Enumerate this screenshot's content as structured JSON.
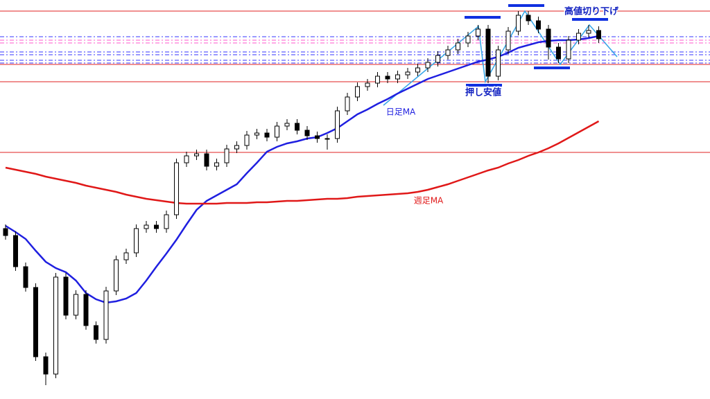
{
  "chart_data": {
    "type": "candlestick",
    "ylim": [
      0,
      576
    ],
    "up_color": "#ffffff",
    "down_color": "#000000",
    "candle_border": "#000000",
    "open": [
      246,
      236,
      191,
      161,
      61,
      36,
      176,
      121,
      151,
      106,
      86,
      156,
      201,
      211,
      246,
      251,
      246,
      266,
      341,
      351,
      354,
      336,
      341,
      361,
      366,
      381,
      384,
      378,
      394,
      398,
      388,
      380,
      376,
      376,
      416,
      436,
      451,
      456,
      466,
      462,
      468,
      472,
      478,
      486,
      496,
      504,
      514,
      524,
      534,
      466,
      504,
      531,
      554,
      546,
      534,
      508,
      491,
      518,
      528,
      532
    ],
    "high": [
      252,
      242,
      197,
      167,
      67,
      182,
      182,
      157,
      157,
      112,
      162,
      207,
      217,
      252,
      257,
      257,
      272,
      347,
      357,
      360,
      360,
      347,
      367,
      372,
      387,
      390,
      390,
      400,
      404,
      404,
      394,
      386,
      382,
      422,
      442,
      457,
      462,
      472,
      472,
      474,
      478,
      484,
      492,
      502,
      510,
      520,
      530,
      540,
      540,
      510,
      537,
      560,
      560,
      552,
      540,
      514,
      524,
      534,
      540,
      538
    ],
    "low": [
      230,
      185,
      155,
      55,
      20,
      30,
      115,
      115,
      100,
      80,
      80,
      150,
      195,
      205,
      240,
      240,
      240,
      260,
      335,
      345,
      330,
      330,
      335,
      355,
      360,
      375,
      372,
      372,
      388,
      382,
      374,
      370,
      360,
      370,
      410,
      430,
      445,
      450,
      456,
      456,
      462,
      466,
      472,
      480,
      490,
      498,
      508,
      518,
      456,
      460,
      498,
      525,
      540,
      528,
      490,
      485,
      485,
      512,
      522,
      514
    ],
    "close": [
      236,
      191,
      161,
      61,
      36,
      176,
      121,
      151,
      106,
      86,
      156,
      201,
      211,
      246,
      251,
      246,
      266,
      341,
      351,
      354,
      336,
      341,
      361,
      366,
      381,
      384,
      378,
      394,
      398,
      388,
      380,
      376,
      376,
      416,
      436,
      451,
      456,
      466,
      462,
      468,
      472,
      478,
      486,
      496,
      504,
      514,
      524,
      534,
      466,
      504,
      531,
      554,
      546,
      534,
      508,
      491,
      518,
      528,
      532,
      520
    ],
    "series": [
      {
        "name": "日足MA",
        "color": "#1f1fe0",
        "values": [
          250,
          241,
          231,
          214,
          198,
          189,
          183,
          171,
          153,
          144,
          139,
          141,
          145,
          153,
          171,
          191,
          210,
          230,
          252,
          273,
          286,
          294,
          302,
          310,
          326,
          341,
          357,
          364,
          369,
          372,
          376,
          378,
          384,
          391,
          401,
          411,
          418,
          426,
          433,
          441,
          448,
          455,
          462,
          467,
          472,
          477,
          482,
          487,
          490,
          494,
          500,
          507,
          511,
          515,
          517,
          518,
          518,
          519,
          521,
          524
        ]
      },
      {
        "name": "週足MA",
        "color": "#e01818",
        "values": [
          334,
          331,
          328,
          325,
          321,
          318,
          315,
          312,
          308,
          305,
          302,
          299,
          295,
          292,
          289,
          287,
          285,
          283,
          282,
          282,
          282,
          282,
          283,
          283,
          283,
          284,
          284,
          285,
          286,
          286,
          287,
          288,
          289,
          289,
          290,
          292,
          293,
          294,
          295,
          296,
          297,
          299,
          302,
          306,
          310,
          315,
          320,
          325,
          330,
          334,
          340,
          345,
          351,
          356,
          362,
          369,
          377,
          385,
          393,
          401
        ]
      }
    ],
    "levels": [
      {
        "value": 560,
        "color": "#e02020",
        "style": "solid"
      },
      {
        "value": 483,
        "color": "#e02020",
        "style": "solid"
      },
      {
        "value": 458,
        "color": "#e02020",
        "style": "solid"
      },
      {
        "value": 356,
        "color": "#e02020",
        "style": "solid"
      },
      {
        "value": 523,
        "color": "#3333ff",
        "style": "dashdot"
      },
      {
        "value": 518,
        "color": "#ff55cc",
        "style": "dashdot"
      },
      {
        "value": 514,
        "color": "#ff55cc",
        "style": "dashdot"
      },
      {
        "value": 501,
        "color": "#3333ff",
        "style": "dashdot"
      },
      {
        "value": 497,
        "color": "#3333ff",
        "style": "dashdot"
      },
      {
        "value": 489,
        "color": "#3333ff",
        "style": "dashdot"
      },
      {
        "value": 485,
        "color": "#3333ff",
        "style": "dashdot"
      }
    ],
    "annotations": [
      "高値切り下げ",
      "押し安値"
    ]
  }
}
